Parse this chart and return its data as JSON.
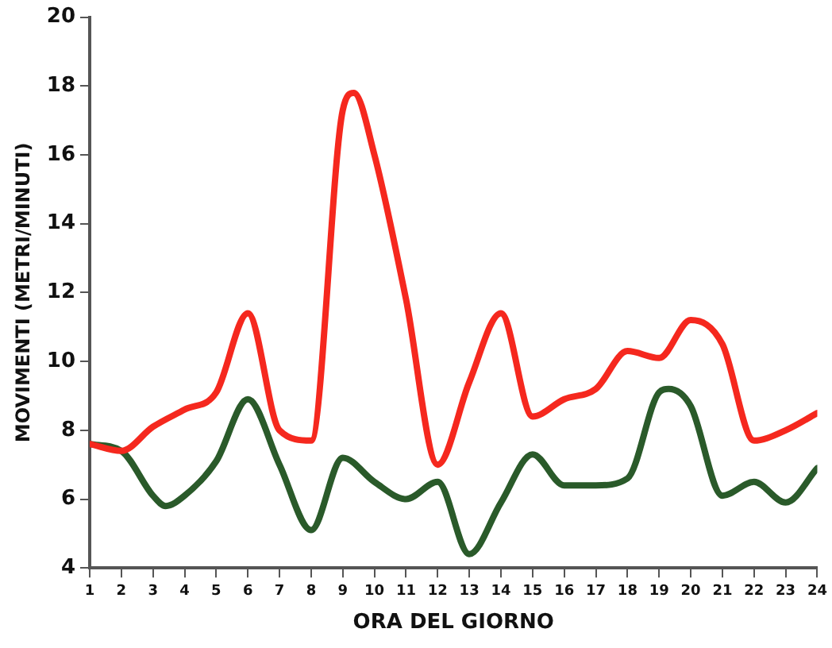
{
  "chart_data": {
    "type": "line",
    "xlabel": "ORA DEL GIORNO",
    "ylabel": "MOVIMENTI (METRI/MINUTI)",
    "xlim": [
      1,
      24
    ],
    "xticks": [
      1,
      2,
      3,
      4,
      5,
      6,
      7,
      8,
      9,
      10,
      11,
      12,
      13,
      14,
      15,
      16,
      17,
      18,
      19,
      20,
      21,
      22,
      23,
      24
    ],
    "ylim": [
      4,
      20
    ],
    "yticks": [
      4,
      6,
      8,
      10,
      12,
      14,
      16,
      18,
      20
    ],
    "grid": false,
    "legend": false,
    "marker": "none",
    "line_style": "solid",
    "series": [
      {
        "color": "#f5281e",
        "x": [
          1,
          2,
          3,
          4,
          5,
          6,
          7,
          8,
          9,
          9.35,
          10,
          11,
          12,
          13,
          14,
          15,
          16,
          17,
          18,
          19,
          20,
          21,
          22,
          23,
          24
        ],
        "values": [
          7.6,
          7.4,
          8.1,
          8.6,
          9.1,
          11.4,
          8.0,
          7.7,
          17.3,
          17.8,
          16.0,
          11.8,
          7.0,
          9.4,
          11.4,
          8.4,
          8.9,
          9.2,
          10.3,
          10.1,
          11.2,
          10.5,
          7.7,
          8.0,
          8.5
        ]
      },
      {
        "color": "#2a5a2a",
        "x": [
          1,
          2,
          3,
          3.4,
          4,
          5,
          6,
          7,
          8,
          9,
          10,
          11,
          12,
          13,
          14,
          15,
          16,
          17,
          18,
          19,
          19.3,
          20,
          21,
          22,
          23,
          24
        ],
        "values": [
          7.6,
          7.4,
          6.1,
          5.8,
          6.1,
          7.1,
          8.9,
          7.0,
          5.1,
          7.2,
          6.5,
          6.0,
          6.5,
          4.4,
          5.9,
          7.3,
          6.4,
          6.4,
          6.6,
          9.1,
          9.2,
          8.7,
          6.1,
          6.5,
          5.9,
          6.9
        ]
      }
    ]
  }
}
